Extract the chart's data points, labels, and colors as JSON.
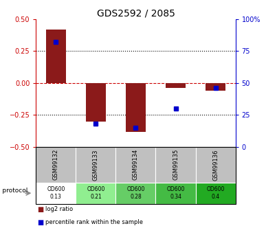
{
  "title": "GDS2592 / 2085",
  "samples": [
    "GSM99132",
    "GSM99133",
    "GSM99134",
    "GSM99135",
    "GSM99136"
  ],
  "log2_ratio": [
    0.42,
    -0.3,
    -0.38,
    -0.04,
    -0.06
  ],
  "percentile_rank": [
    82,
    18,
    15,
    30,
    46
  ],
  "bar_color": "#8B1A1A",
  "dot_color": "#0000CC",
  "ylim_left": [
    -0.5,
    0.5
  ],
  "ylim_right": [
    0,
    100
  ],
  "yticks_left": [
    -0.5,
    -0.25,
    0,
    0.25,
    0.5
  ],
  "yticks_right": [
    0,
    25,
    50,
    75,
    100
  ],
  "hlines_dotted": [
    0.25,
    -0.25
  ],
  "left_tick_color": "#CC0000",
  "right_tick_color": "#0000CC",
  "growth_protocol_label": "growth protocol",
  "od600_values": [
    "OD600\n0.13",
    "OD600\n0.21",
    "OD600\n0.28",
    "OD600\n0.34",
    "OD600\n0.4"
  ],
  "od600_colors": [
    "#FFFFFF",
    "#90EE90",
    "#66CD66",
    "#44BB44",
    "#22AA22"
  ],
  "table_header_bg": "#C0C0C0",
  "legend_items": [
    {
      "color": "#8B1A1A",
      "label": "log2 ratio"
    },
    {
      "color": "#0000CC",
      "label": "percentile rank within the sample"
    }
  ],
  "bar_width": 0.5,
  "right_tick_labels": [
    "0",
    "25",
    "50",
    "75",
    "100%"
  ]
}
